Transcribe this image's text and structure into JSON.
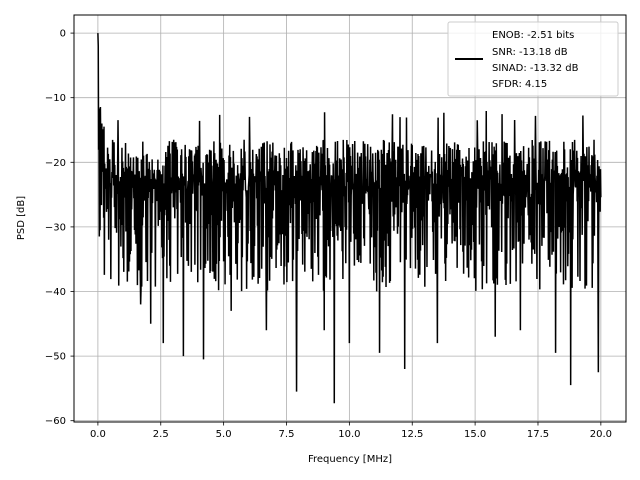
{
  "chart_data": {
    "type": "line",
    "title": "",
    "xlabel": "Frequency [MHz]",
    "ylabel": "PSD [dB]",
    "xlim": [
      -0.95,
      21.0
    ],
    "ylim": [
      -60.2,
      2.8
    ],
    "xticks": [
      0.0,
      2.5,
      5.0,
      7.5,
      10.0,
      12.5,
      15.0,
      17.5,
      20.0
    ],
    "xtick_labels": [
      "0.0",
      "2.5",
      "5.0",
      "7.5",
      "10.0",
      "12.5",
      "15.0",
      "17.5",
      "20.0"
    ],
    "yticks": [
      0,
      -10,
      -20,
      -30,
      -40,
      -50,
      -60
    ],
    "ytick_labels": [
      "0",
      "−10",
      "−20",
      "−30",
      "−40",
      "−50",
      "−60"
    ],
    "grid": true,
    "legend_position": "top-right",
    "series": [
      {
        "name": "",
        "color": "#000000",
        "x_range": [
          0.0,
          20.0
        ],
        "peak": {
          "x": 0.0,
          "y": 0.0
        },
        "typical_range": [
          -40,
          -16
        ],
        "max_noise_peak": -12.0,
        "deep_nulls": [
          {
            "x": 1.7,
            "y": -42.0
          },
          {
            "x": 2.1,
            "y": -45.0
          },
          {
            "x": 2.6,
            "y": -48.0
          },
          {
            "x": 3.4,
            "y": -50.0
          },
          {
            "x": 4.2,
            "y": -50.5
          },
          {
            "x": 5.3,
            "y": -43.0
          },
          {
            "x": 6.7,
            "y": -46.0
          },
          {
            "x": 7.9,
            "y": -55.5
          },
          {
            "x": 9.0,
            "y": -46.0
          },
          {
            "x": 9.4,
            "y": -57.3
          },
          {
            "x": 10.0,
            "y": -48.0
          },
          {
            "x": 11.2,
            "y": -49.5
          },
          {
            "x": 12.2,
            "y": -52.0
          },
          {
            "x": 13.5,
            "y": -48.0
          },
          {
            "x": 15.8,
            "y": -47.0
          },
          {
            "x": 16.8,
            "y": -46.0
          },
          {
            "x": 18.2,
            "y": -49.5
          },
          {
            "x": 18.8,
            "y": -54.5
          },
          {
            "x": 19.9,
            "y": -52.5
          }
        ]
      }
    ],
    "legend": {
      "lines": [
        "ENOB: -2.51 bits",
        "SNR: -13.18 dB",
        "SINAD: -13.32 dB",
        "SFDR: 4.15"
      ]
    }
  }
}
